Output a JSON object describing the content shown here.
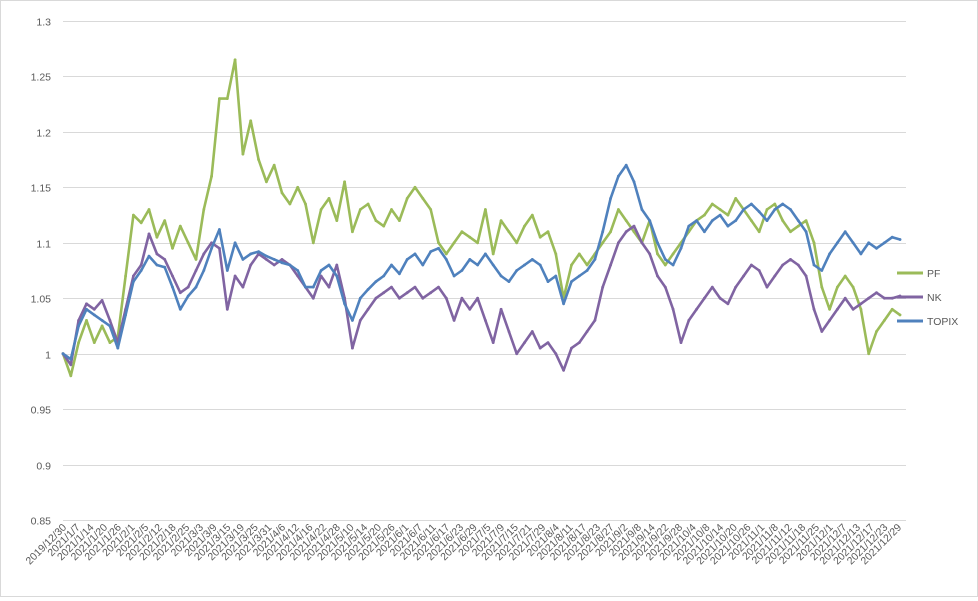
{
  "chart_data": {
    "type": "line",
    "title": "",
    "xlabel": "",
    "ylabel": "",
    "ylim": [
      0.85,
      1.3
    ],
    "ytick_step": 0.05,
    "y_ticks": [
      "0.85",
      "0.9",
      "0.95",
      "1",
      "1.05",
      "1.1",
      "1.15",
      "1.2",
      "1.25",
      "1.3"
    ],
    "grid": true,
    "legend_position": "right",
    "x_tick_labels": [
      "2019/12/30",
      "2021/1/7",
      "2021/1/14",
      "2021/1/20",
      "2021/1/26",
      "2021/2/1",
      "2021/2/5",
      "2021/2/12",
      "2021/2/18",
      "2021/2/25",
      "2021/3/3",
      "2021/3/9",
      "2021/3/15",
      "2021/3/19",
      "2021/3/25",
      "2021/3/31",
      "2021/4/6",
      "2021/4/12",
      "2021/4/16",
      "2021/4/22",
      "2021/4/28",
      "2021/5/10",
      "2021/5/14",
      "2021/5/20",
      "2021/5/26",
      "2021/6/1",
      "2021/6/7",
      "2021/6/11",
      "2021/6/17",
      "2021/6/23",
      "2021/6/29",
      "2021/7/5",
      "2021/7/9",
      "2021/7/15",
      "2021/7/21",
      "2021/7/29",
      "2021/8/4",
      "2021/8/11",
      "2021/8/17",
      "2021/8/23",
      "2021/8/27",
      "2021/9/2",
      "2021/9/8",
      "2021/9/14",
      "2021/9/22",
      "2021/9/28",
      "2021/10/4",
      "2021/10/8",
      "2021/10/14",
      "2021/10/20",
      "2021/10/26",
      "2021/11/1",
      "2021/11/8",
      "2021/11/12",
      "2021/11/18",
      "2021/11/25",
      "2021/12/1",
      "2021/12/7",
      "2021/12/13",
      "2021/12/17",
      "2021/12/23",
      "2021/12/29"
    ],
    "series": [
      {
        "name": "PF",
        "color": "#9BBB59",
        "values": [
          1.0,
          0.98,
          1.01,
          1.03,
          1.01,
          1.025,
          1.01,
          1.015,
          1.07,
          1.125,
          1.118,
          1.13,
          1.105,
          1.12,
          1.095,
          1.115,
          1.1,
          1.085,
          1.13,
          1.16,
          1.23,
          1.23,
          1.265,
          1.18,
          1.21,
          1.175,
          1.155,
          1.17,
          1.145,
          1.135,
          1.15,
          1.135,
          1.1,
          1.13,
          1.14,
          1.12,
          1.155,
          1.11,
          1.13,
          1.135,
          1.12,
          1.115,
          1.13,
          1.12,
          1.14,
          1.15,
          1.14,
          1.13,
          1.1,
          1.09,
          1.1,
          1.11,
          1.105,
          1.1,
          1.13,
          1.09,
          1.12,
          1.11,
          1.1,
          1.115,
          1.125,
          1.105,
          1.11,
          1.09,
          1.05,
          1.08,
          1.09,
          1.08,
          1.09,
          1.1,
          1.11,
          1.13,
          1.12,
          1.11,
          1.1,
          1.12,
          1.09,
          1.08,
          1.09,
          1.1,
          1.11,
          1.12,
          1.125,
          1.135,
          1.13,
          1.125,
          1.14,
          1.13,
          1.12,
          1.11,
          1.13,
          1.135,
          1.12,
          1.11,
          1.115,
          1.12,
          1.1,
          1.06,
          1.04,
          1.06,
          1.07,
          1.06,
          1.04,
          1.0,
          1.02,
          1.03,
          1.04,
          1.035
        ]
      },
      {
        "name": "NK",
        "color": "#8064A2",
        "values": [
          1.0,
          0.99,
          1.03,
          1.045,
          1.04,
          1.048,
          1.03,
          1.01,
          1.04,
          1.07,
          1.08,
          1.108,
          1.09,
          1.085,
          1.07,
          1.055,
          1.06,
          1.075,
          1.09,
          1.1,
          1.095,
          1.04,
          1.07,
          1.06,
          1.08,
          1.09,
          1.085,
          1.08,
          1.085,
          1.08,
          1.07,
          1.06,
          1.05,
          1.07,
          1.06,
          1.08,
          1.05,
          1.005,
          1.03,
          1.04,
          1.05,
          1.055,
          1.06,
          1.05,
          1.055,
          1.06,
          1.05,
          1.055,
          1.06,
          1.05,
          1.03,
          1.05,
          1.04,
          1.05,
          1.03,
          1.01,
          1.04,
          1.02,
          1.0,
          1.01,
          1.02,
          1.005,
          1.01,
          1.0,
          0.985,
          1.005,
          1.01,
          1.02,
          1.03,
          1.06,
          1.08,
          1.1,
          1.11,
          1.115,
          1.1,
          1.09,
          1.07,
          1.06,
          1.04,
          1.01,
          1.03,
          1.04,
          1.05,
          1.06,
          1.05,
          1.045,
          1.06,
          1.07,
          1.08,
          1.075,
          1.06,
          1.07,
          1.08,
          1.085,
          1.08,
          1.07,
          1.04,
          1.02,
          1.03,
          1.04,
          1.05,
          1.04,
          1.045,
          1.05,
          1.055,
          1.05,
          1.05,
          1.052
        ]
      },
      {
        "name": "TOPIX",
        "color": "#4F81BD",
        "values": [
          1.0,
          0.995,
          1.025,
          1.04,
          1.035,
          1.03,
          1.025,
          1.005,
          1.035,
          1.065,
          1.075,
          1.088,
          1.08,
          1.078,
          1.06,
          1.04,
          1.052,
          1.06,
          1.075,
          1.095,
          1.112,
          1.075,
          1.1,
          1.085,
          1.09,
          1.092,
          1.088,
          1.085,
          1.082,
          1.08,
          1.075,
          1.06,
          1.06,
          1.075,
          1.08,
          1.07,
          1.045,
          1.03,
          1.05,
          1.058,
          1.065,
          1.07,
          1.08,
          1.072,
          1.085,
          1.09,
          1.08,
          1.092,
          1.095,
          1.085,
          1.07,
          1.075,
          1.085,
          1.08,
          1.09,
          1.08,
          1.07,
          1.065,
          1.075,
          1.08,
          1.085,
          1.08,
          1.065,
          1.07,
          1.045,
          1.065,
          1.07,
          1.075,
          1.085,
          1.11,
          1.14,
          1.16,
          1.17,
          1.155,
          1.13,
          1.12,
          1.1,
          1.085,
          1.08,
          1.095,
          1.115,
          1.12,
          1.11,
          1.12,
          1.125,
          1.115,
          1.12,
          1.13,
          1.135,
          1.128,
          1.12,
          1.13,
          1.135,
          1.13,
          1.12,
          1.11,
          1.08,
          1.075,
          1.09,
          1.1,
          1.11,
          1.1,
          1.09,
          1.1,
          1.095,
          1.1,
          1.105,
          1.103
        ]
      }
    ]
  }
}
